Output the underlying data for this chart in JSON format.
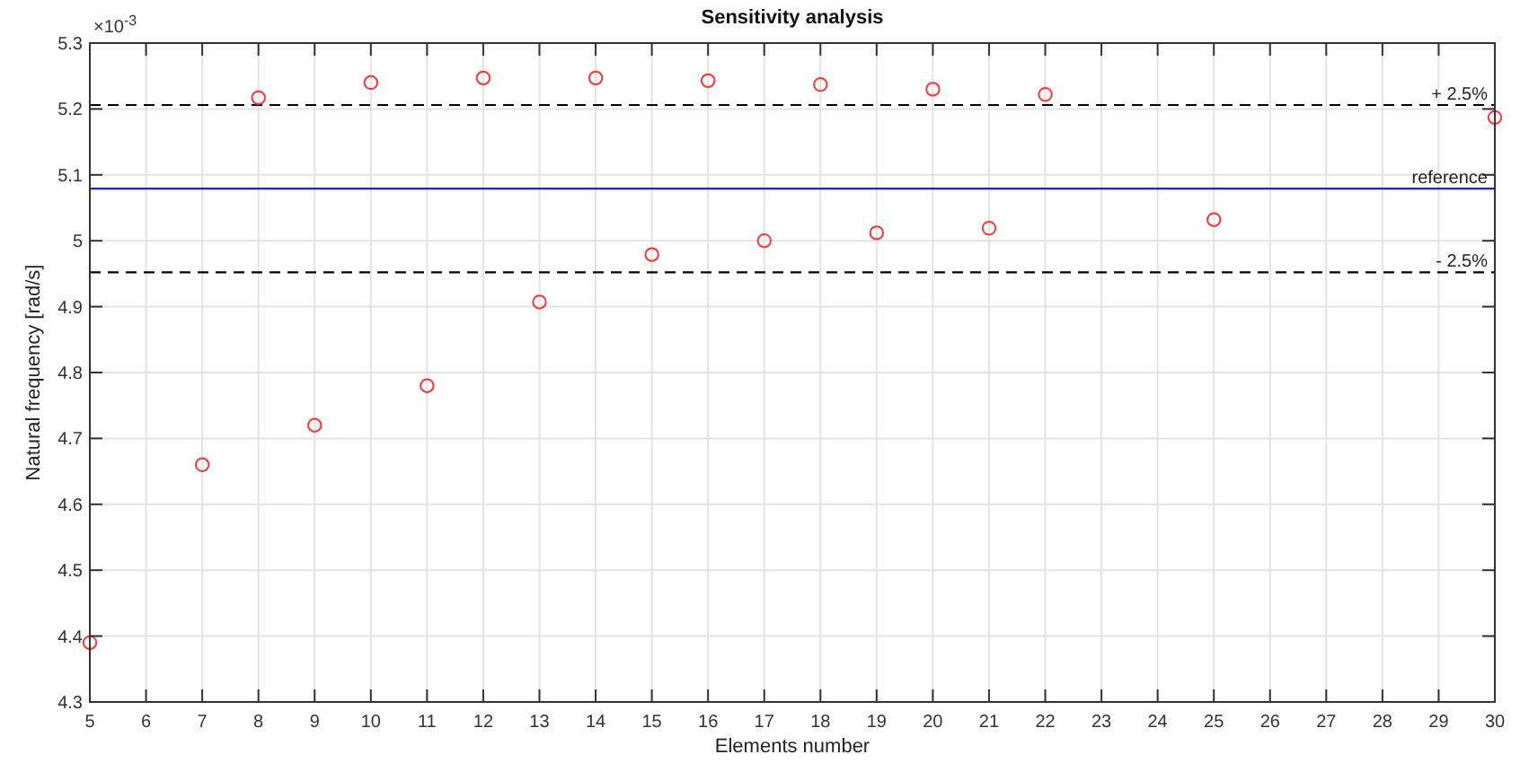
{
  "chart_data": {
    "type": "scatter",
    "title": "Sensitivity analysis",
    "xlabel": "Elements number",
    "ylabel": "Natural frequency [rad/s]",
    "annotations": [
      "×10$^{-3}$",
      {
        "text": "+ 2.5%",
        "y": 5.206
      },
      {
        "text": "reference",
        "y": 5.079
      },
      {
        "text": "- 2.5%",
        "y": 4.952
      }
    ],
    "x": [
      5,
      7,
      8,
      9,
      10,
      11,
      12,
      13,
      14,
      15,
      16,
      17,
      18,
      19,
      20,
      21,
      22,
      25,
      30
    ],
    "series": [
      {
        "color": "#ff3333",
        "values": [
          4.39,
          4.66,
          5.217,
          4.72,
          5.24,
          4.78,
          5.247,
          4.907,
          5.247,
          4.979,
          5.243,
          5.0,
          5.237,
          5.012,
          5.23,
          5.019,
          5.222,
          5.032,
          5.187
        ]
      }
    ],
    "xlim": [
      5,
      30
    ],
    "xticks": [
      5,
      6,
      7,
      8,
      9,
      10,
      11,
      12,
      13,
      14,
      15,
      16,
      17,
      18,
      19,
      20,
      21,
      22,
      23,
      24,
      25,
      26,
      27,
      28,
      29,
      30
    ],
    "ylim": [
      4.3,
      5.3
    ],
    "yticks": [
      4.3,
      4.4,
      4.5,
      4.6,
      4.7,
      4.8,
      4.9,
      5,
      5.1,
      5.2,
      5.3
    ],
    "ref_lines": [
      {
        "axis": "y",
        "value": 5.206,
        "color": "#000000",
        "line_style": "dashed"
      },
      {
        "axis": "y",
        "value": 5.079,
        "color": "#1f1fd6",
        "line_style": "solid"
      },
      {
        "axis": "y",
        "value": 4.952,
        "color": "#000000",
        "line_style": "dashed"
      }
    ],
    "grid": true,
    "marker": "circle"
  }
}
